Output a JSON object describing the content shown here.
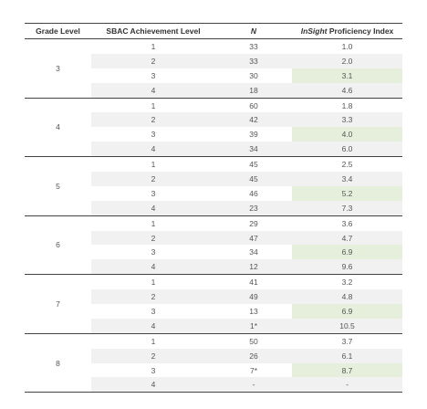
{
  "table": {
    "header": {
      "grade": "Grade Level",
      "level": "SBAC Achievement Level",
      "n": "N",
      "index_italic": "InSight",
      "index_rest": "Proficiency Index"
    },
    "groups": [
      {
        "grade": "3",
        "rows": [
          [
            "1",
            "33",
            "1.0"
          ],
          [
            "2",
            "33",
            "2.0"
          ],
          [
            "3",
            "30",
            "3.1"
          ],
          [
            "4",
            "18",
            "4.6"
          ]
        ]
      },
      {
        "grade": "4",
        "rows": [
          [
            "1",
            "60",
            "1.8"
          ],
          [
            "2",
            "42",
            "3.3"
          ],
          [
            "3",
            "39",
            "4.0"
          ],
          [
            "4",
            "34",
            "6.0"
          ]
        ]
      },
      {
        "grade": "5",
        "rows": [
          [
            "1",
            "45",
            "2.5"
          ],
          [
            "2",
            "45",
            "3.4"
          ],
          [
            "3",
            "46",
            "5.2"
          ],
          [
            "4",
            "23",
            "7.3"
          ]
        ]
      },
      {
        "grade": "6",
        "rows": [
          [
            "1",
            "29",
            "3.6"
          ],
          [
            "2",
            "47",
            "4.7"
          ],
          [
            "3",
            "34",
            "6.9"
          ],
          [
            "4",
            "12",
            "9.6"
          ]
        ]
      },
      {
        "grade": "7",
        "rows": [
          [
            "1",
            "41",
            "3.2"
          ],
          [
            "2",
            "49",
            "4.8"
          ],
          [
            "3",
            "13",
            "6.9"
          ],
          [
            "4",
            "1*",
            "10.5"
          ]
        ]
      },
      {
        "grade": "8",
        "rows": [
          [
            "1",
            "50",
            "3.7"
          ],
          [
            "2",
            "26",
            "6.1"
          ],
          [
            "3",
            "7*",
            "8.7"
          ],
          [
            "4",
            "-",
            "-"
          ]
        ]
      }
    ]
  }
}
